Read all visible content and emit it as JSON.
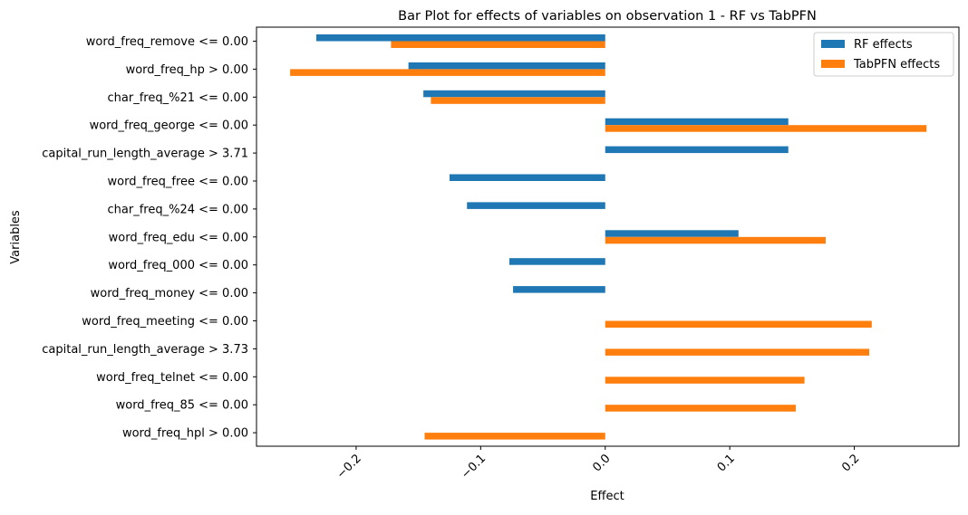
{
  "chart_data": {
    "type": "bar",
    "orientation": "horizontal",
    "title": "Bar Plot for effects of variables on observation 1 - RF vs TabPFN",
    "xlabel": "Effect",
    "ylabel": "Variables",
    "xlim": [
      -0.28,
      0.284
    ],
    "xticks": [
      -0.2,
      -0.1,
      0.0,
      0.1,
      0.2
    ],
    "xtick_labels": [
      "−0.2",
      "−0.1",
      "0.0",
      "0.1",
      "0.2"
    ],
    "grid": false,
    "legend_position": "top-right",
    "categories": [
      "word_freq_remove <= 0.00",
      "word_freq_hp > 0.00",
      "char_freq_%21 <= 0.00",
      "word_freq_george <= 0.00",
      "capital_run_length_average > 3.71",
      "word_freq_free <= 0.00",
      "char_freq_%24 <= 0.00",
      "word_freq_edu <= 0.00",
      "word_freq_000 <= 0.00",
      "word_freq_money <= 0.00",
      "word_freq_meeting <= 0.00",
      "capital_run_length_average > 3.73",
      "word_freq_telnet <= 0.00",
      "word_freq_85 <= 0.00",
      "word_freq_hpl > 0.00"
    ],
    "series": [
      {
        "name": "RF effects",
        "color": "#1f77b4",
        "values": [
          -0.232,
          -0.158,
          -0.146,
          0.147,
          0.147,
          -0.125,
          -0.111,
          0.107,
          -0.077,
          -0.074,
          null,
          null,
          null,
          null,
          null
        ]
      },
      {
        "name": "TabPFN effects",
        "color": "#ff7f0e",
        "values": [
          -0.172,
          -0.253,
          -0.14,
          0.258,
          null,
          null,
          null,
          0.177,
          null,
          null,
          0.214,
          0.212,
          0.16,
          0.153,
          -0.145
        ]
      }
    ]
  }
}
